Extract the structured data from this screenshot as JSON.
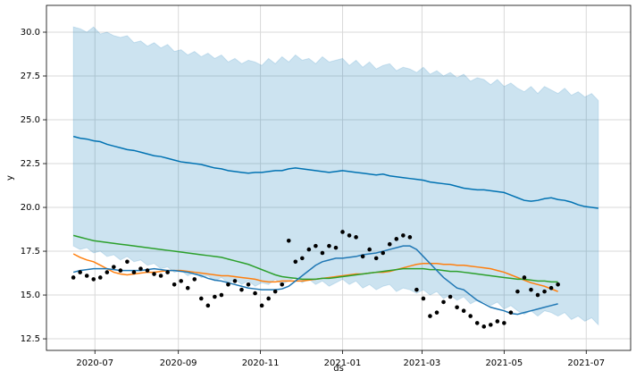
{
  "chart_data": {
    "type": "line",
    "xlabel": "ds",
    "ylabel": "y",
    "x": [
      "2020-06-15",
      "2020-06-20",
      "2020-06-25",
      "2020-06-30",
      "2020-07-05",
      "2020-07-10",
      "2020-07-15",
      "2020-07-20",
      "2020-07-25",
      "2020-07-30",
      "2020-08-04",
      "2020-08-09",
      "2020-08-14",
      "2020-08-19",
      "2020-08-24",
      "2020-08-29",
      "2020-09-03",
      "2020-09-08",
      "2020-09-13",
      "2020-09-18",
      "2020-09-23",
      "2020-09-28",
      "2020-10-03",
      "2020-10-08",
      "2020-10-13",
      "2020-10-18",
      "2020-10-23",
      "2020-10-28",
      "2020-11-02",
      "2020-11-07",
      "2020-11-12",
      "2020-11-17",
      "2020-11-22",
      "2020-11-27",
      "2020-12-02",
      "2020-12-07",
      "2020-12-12",
      "2020-12-17",
      "2020-12-22",
      "2020-12-27",
      "2021-01-01",
      "2021-01-06",
      "2021-01-11",
      "2021-01-16",
      "2021-01-21",
      "2021-01-26",
      "2021-01-31",
      "2021-02-05",
      "2021-02-10",
      "2021-02-15",
      "2021-02-20",
      "2021-02-25",
      "2021-03-02",
      "2021-03-07",
      "2021-03-12",
      "2021-03-17",
      "2021-03-22",
      "2021-03-27",
      "2021-04-01",
      "2021-04-06",
      "2021-04-11",
      "2021-04-16",
      "2021-04-21",
      "2021-04-26",
      "2021-05-01",
      "2021-05-06",
      "2021-05-11",
      "2021-05-16",
      "2021-05-21",
      "2021-05-26",
      "2021-05-31",
      "2021-06-05",
      "2021-06-10",
      "2021-06-15",
      "2021-06-20",
      "2021-06-25",
      "2021-06-30",
      "2021-07-05",
      "2021-07-10"
    ],
    "xlim": [
      "2020-05-26",
      "2021-08-03"
    ],
    "xticks": [
      {
        "value": "2020-07-01",
        "label": "2020-07"
      },
      {
        "value": "2020-09-01",
        "label": "2020-09"
      },
      {
        "value": "2020-11-01",
        "label": "2020-11"
      },
      {
        "value": "2021-01-01",
        "label": "2021-01"
      },
      {
        "value": "2021-03-01",
        "label": "2021-03"
      },
      {
        "value": "2021-05-01",
        "label": "2021-05"
      },
      {
        "value": "2021-07-01",
        "label": "2021-07"
      }
    ],
    "ylim": [
      11.84,
      31.53
    ],
    "yticks": [
      12.5,
      {
        "value": 15,
        "label": "15.0"
      },
      17.5,
      {
        "value": 20,
        "label": "20.0"
      },
      22.5,
      {
        "value": 25,
        "label": "25.0"
      },
      27.5,
      {
        "value": 30,
        "label": "30.0"
      }
    ],
    "grid": true,
    "band": {
      "color": "#0072B2",
      "upper": [
        30.3,
        30.2,
        30.0,
        30.3,
        29.9,
        30.0,
        29.8,
        29.7,
        29.8,
        29.4,
        29.5,
        29.2,
        29.4,
        29.1,
        29.3,
        28.9,
        29.0,
        28.7,
        28.9,
        28.6,
        28.8,
        28.5,
        28.7,
        28.3,
        28.5,
        28.2,
        28.4,
        28.3,
        28.1,
        28.5,
        28.2,
        28.6,
        28.3,
        28.7,
        28.4,
        28.5,
        28.2,
        28.6,
        28.3,
        28.4,
        28.5,
        28.1,
        28.4,
        28.0,
        28.3,
        27.9,
        28.1,
        28.2,
        27.8,
        28.0,
        27.9,
        27.7,
        28.0,
        27.6,
        27.8,
        27.5,
        27.7,
        27.4,
        27.6,
        27.2,
        27.4,
        27.3,
        27.0,
        27.3,
        26.9,
        27.1,
        26.8,
        26.6,
        26.9,
        26.5,
        26.9,
        26.7,
        26.5,
        26.8,
        26.4,
        26.6,
        26.3,
        26.5,
        26.1
      ],
      "lower": [
        17.8,
        17.6,
        17.7,
        17.4,
        17.5,
        17.2,
        17.3,
        17.0,
        17.2,
        16.9,
        17.0,
        16.7,
        16.8,
        16.5,
        16.6,
        16.3,
        16.4,
        16.1,
        16.3,
        16.0,
        16.1,
        15.8,
        16.0,
        15.7,
        15.9,
        15.6,
        15.8,
        15.5,
        15.7,
        15.6,
        15.9,
        15.6,
        15.8,
        16.0,
        15.7,
        15.9,
        15.6,
        15.8,
        15.5,
        15.7,
        15.9,
        15.6,
        15.8,
        15.4,
        15.6,
        15.3,
        15.5,
        15.6,
        15.2,
        15.4,
        15.3,
        15.1,
        15.3,
        15.0,
        15.2,
        14.8,
        15.0,
        14.7,
        14.9,
        14.5,
        14.7,
        14.6,
        14.4,
        14.6,
        14.2,
        14.4,
        14.1,
        13.9,
        14.1,
        13.8,
        14.1,
        14.0,
        13.8,
        14.0,
        13.6,
        13.8,
        13.5,
        13.7,
        13.3
      ]
    },
    "series": [
      {
        "style": "line",
        "color": "#0072B2",
        "values": [
          24.05,
          23.95,
          23.9,
          23.8,
          23.75,
          23.6,
          23.5,
          23.4,
          23.3,
          23.25,
          23.15,
          23.05,
          22.95,
          22.9,
          22.8,
          22.7,
          22.6,
          22.55,
          22.5,
          22.45,
          22.35,
          22.25,
          22.2,
          22.1,
          22.05,
          22.0,
          21.95,
          22.0,
          22.0,
          22.05,
          22.1,
          22.1,
          22.2,
          22.25,
          22.2,
          22.15,
          22.1,
          22.05,
          22.0,
          22.05,
          22.1,
          22.05,
          22.0,
          21.95,
          21.9,
          21.85,
          21.9,
          21.8,
          21.75,
          21.7,
          21.65,
          21.6,
          21.55,
          21.45,
          21.4,
          21.35,
          21.3,
          21.2,
          21.1,
          21.05,
          21.0,
          21.0,
          20.95,
          20.9,
          20.85,
          20.7,
          20.55,
          20.4,
          20.35,
          20.4,
          20.5,
          20.55,
          20.45,
          20.4,
          20.3,
          20.15,
          20.05,
          20.0,
          19.95
        ]
      },
      {
        "style": "line",
        "color": "#ff7f0e",
        "values": [
          17.35,
          17.15,
          17.0,
          16.9,
          16.7,
          16.5,
          16.3,
          16.2,
          16.15,
          16.2,
          16.25,
          16.3,
          16.3,
          16.35,
          16.4,
          16.4,
          16.4,
          16.35,
          16.3,
          16.25,
          16.2,
          16.15,
          16.1,
          16.1,
          16.05,
          16.0,
          15.95,
          15.9,
          15.8,
          15.75,
          15.75,
          15.8,
          15.8,
          15.8,
          15.8,
          15.85,
          15.9,
          15.95,
          16.0,
          16.05,
          16.1,
          16.15,
          16.2,
          16.2,
          16.25,
          16.3,
          16.3,
          16.35,
          16.45,
          16.55,
          16.65,
          16.75,
          16.8,
          16.8,
          16.8,
          16.75,
          16.75,
          16.7,
          16.7,
          16.65,
          16.6,
          16.55,
          16.5,
          16.4,
          16.3,
          16.15,
          16.0,
          15.85,
          15.7,
          15.6,
          15.5,
          15.35,
          15.2,
          null,
          null,
          null,
          null,
          null,
          null
        ]
      },
      {
        "style": "line",
        "color": "#2ca02c",
        "values": [
          18.4,
          18.3,
          18.2,
          18.1,
          18.05,
          18.0,
          17.95,
          17.9,
          17.85,
          17.8,
          17.75,
          17.7,
          17.65,
          17.6,
          17.55,
          17.5,
          17.45,
          17.4,
          17.35,
          17.3,
          17.25,
          17.2,
          17.15,
          17.05,
          16.95,
          16.85,
          16.75,
          16.6,
          16.45,
          16.3,
          16.15,
          16.05,
          16.0,
          15.95,
          15.9,
          15.9,
          15.9,
          15.95,
          15.95,
          16.0,
          16.05,
          16.1,
          16.15,
          16.2,
          16.25,
          16.3,
          16.35,
          16.4,
          16.45,
          16.5,
          16.5,
          16.5,
          16.5,
          16.45,
          16.45,
          16.4,
          16.35,
          16.35,
          16.3,
          16.25,
          16.2,
          16.15,
          16.1,
          16.05,
          16.0,
          15.95,
          15.9,
          15.9,
          15.85,
          15.8,
          15.8,
          15.75,
          15.75,
          null,
          null,
          null,
          null,
          null,
          null
        ]
      },
      {
        "style": "line",
        "color": "#1f77b4",
        "values": [
          16.3,
          16.4,
          16.45,
          16.5,
          16.5,
          16.5,
          16.45,
          16.4,
          16.4,
          16.4,
          16.4,
          16.45,
          16.5,
          16.45,
          16.4,
          16.4,
          16.35,
          16.3,
          16.2,
          16.1,
          15.95,
          15.85,
          15.8,
          15.7,
          15.6,
          15.5,
          15.4,
          15.35,
          15.3,
          15.3,
          15.3,
          15.35,
          15.5,
          15.8,
          16.1,
          16.4,
          16.7,
          16.9,
          17.0,
          17.1,
          17.1,
          17.15,
          17.2,
          17.3,
          17.35,
          17.4,
          17.5,
          17.6,
          17.7,
          17.8,
          17.8,
          17.6,
          17.2,
          16.8,
          16.4,
          16.0,
          15.7,
          15.4,
          15.3,
          15.0,
          14.7,
          14.5,
          14.3,
          14.2,
          14.1,
          13.95,
          13.9,
          14.0,
          14.1,
          14.2,
          14.3,
          14.4,
          14.5,
          null,
          null,
          null,
          null,
          null,
          null
        ]
      },
      {
        "style": "scatter",
        "color": "#000000",
        "values": [
          16.0,
          16.3,
          16.1,
          15.9,
          16.0,
          16.3,
          16.6,
          16.4,
          16.9,
          16.3,
          16.5,
          16.4,
          16.2,
          16.1,
          16.3,
          15.6,
          15.8,
          15.4,
          15.9,
          14.8,
          14.4,
          14.9,
          15.0,
          15.6,
          15.8,
          15.3,
          15.6,
          15.1,
          14.4,
          14.8,
          15.2,
          15.6,
          18.1,
          16.9,
          17.1,
          17.6,
          17.8,
          17.4,
          17.8,
          17.7,
          18.6,
          18.4,
          18.3,
          17.2,
          17.6,
          17.1,
          17.4,
          17.9,
          18.2,
          18.4,
          18.3,
          15.3,
          14.8,
          13.8,
          14.0,
          14.6,
          14.9,
          14.3,
          14.1,
          13.8,
          13.4,
          13.2,
          13.3,
          13.5,
          13.4,
          14.0,
          15.2,
          16.0,
          15.3,
          15.0,
          15.2,
          15.4,
          15.6,
          null,
          null,
          null,
          null,
          null,
          null
        ]
      }
    ]
  }
}
